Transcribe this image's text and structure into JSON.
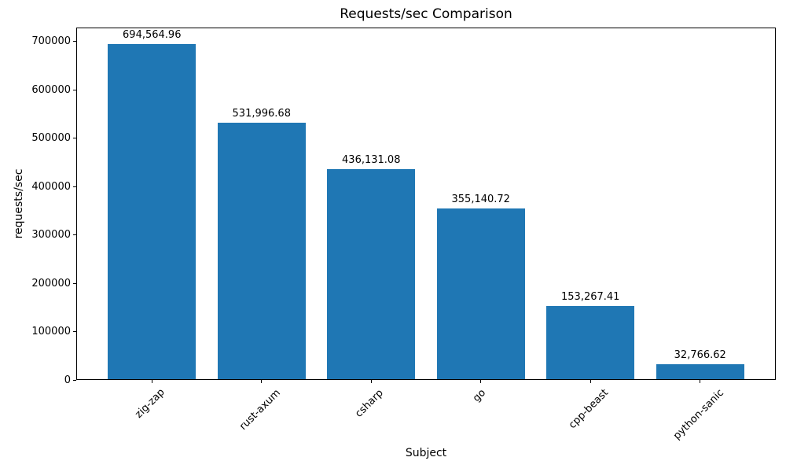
{
  "chart_data": {
    "type": "bar",
    "title": "Requests/sec Comparison",
    "xlabel": "Subject",
    "ylabel": "requests/sec",
    "categories": [
      "zig-zap",
      "rust-axum",
      "csharp",
      "go",
      "cpp-beast",
      "python-sanic"
    ],
    "values": [
      694564.96,
      531996.68,
      436131.08,
      355140.72,
      153267.41,
      32766.62
    ],
    "value_labels": [
      "694,564.96",
      "531,996.68",
      "436,131.08",
      "355,140.72",
      "153,267.41",
      "32,766.62"
    ],
    "bar_color": "#1f77b4",
    "text_color": "#000000",
    "ylim": [
      0,
      729293
    ],
    "yticks": [
      0,
      100000,
      200000,
      300000,
      400000,
      500000,
      600000,
      700000
    ],
    "grid": false,
    "legend": null
  }
}
